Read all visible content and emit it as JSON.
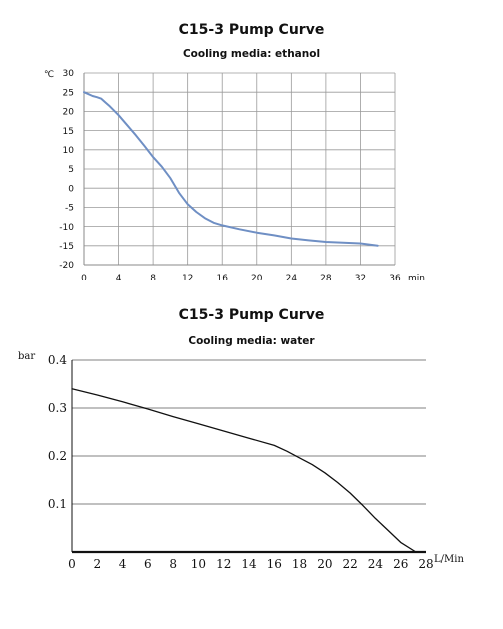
{
  "chart_data": [
    {
      "type": "line",
      "title": "C15-3 Pump Curve",
      "subtitle": "Cooling media: ethanol",
      "ylabel": "℃",
      "xlabel": "min",
      "xlim": [
        0,
        36
      ],
      "ylim": [
        -20,
        30
      ],
      "xticks": [
        0,
        4,
        8,
        12,
        16,
        20,
        24,
        28,
        32,
        36
      ],
      "yticks": [
        30,
        25,
        20,
        15,
        10,
        5,
        0,
        -5,
        -10,
        -15,
        -20
      ],
      "xtick_labels": [
        "0",
        "4",
        "8",
        "12",
        "16",
        "20",
        "24",
        "28",
        "32",
        "36"
      ],
      "ytick_labels": [
        "30",
        "25",
        "20",
        "15",
        "10",
        "5",
        "0",
        "-5",
        "-10",
        "-15",
        "-20"
      ],
      "grid": true,
      "line_color": "#6f8fc4",
      "series": [
        {
          "x": [
            0,
            0.5,
            1,
            1.5,
            2,
            2.5,
            3,
            4,
            5,
            6,
            7,
            8,
            9,
            10,
            10.5,
            11,
            12,
            13,
            14,
            15,
            16,
            18,
            20,
            22,
            24,
            26,
            28,
            30,
            32,
            34
          ],
          "y": [
            25,
            24.5,
            24,
            23.7,
            23.3,
            22.3,
            21.3,
            19,
            16.4,
            13.8,
            11,
            8.1,
            5.6,
            2.6,
            0.7,
            -1.2,
            -4.2,
            -6.2,
            -7.8,
            -9,
            -9.7,
            -10.7,
            -11.6,
            -12.3,
            -13.1,
            -13.6,
            -14,
            -14.2,
            -14.4,
            -15
          ]
        }
      ]
    },
    {
      "type": "line",
      "title": "C15-3 Pump Curve",
      "subtitle": "Cooling media: water",
      "ylabel": "bar",
      "xlabel": "L/Min",
      "xlim": [
        0,
        28
      ],
      "ylim": [
        0,
        0.4
      ],
      "xticks": [
        0,
        2,
        4,
        6,
        8,
        10,
        12,
        14,
        16,
        18,
        20,
        22,
        24,
        26,
        28
      ],
      "yticks": [
        0.4,
        0.3,
        0.2,
        0.1
      ],
      "xtick_labels": [
        "0",
        "2",
        "4",
        "6",
        "8",
        "10",
        "12",
        "14",
        "16",
        "18",
        "20",
        "22",
        "24",
        "26",
        "28"
      ],
      "ytick_labels": [
        "0.4",
        "0.3",
        "0.2",
        "0.1"
      ],
      "grid": true,
      "line_color": "#111111",
      "series": [
        {
          "x": [
            0,
            2,
            4,
            6,
            8,
            10,
            12,
            14,
            16,
            17,
            18,
            19,
            20,
            21,
            22,
            23,
            24,
            25,
            26,
            27.2
          ],
          "y": [
            0.34,
            0.327,
            0.313,
            0.298,
            0.282,
            0.267,
            0.252,
            0.237,
            0.222,
            0.21,
            0.196,
            0.182,
            0.165,
            0.145,
            0.123,
            0.097,
            0.07,
            0.045,
            0.02,
            0.0
          ]
        }
      ]
    }
  ]
}
